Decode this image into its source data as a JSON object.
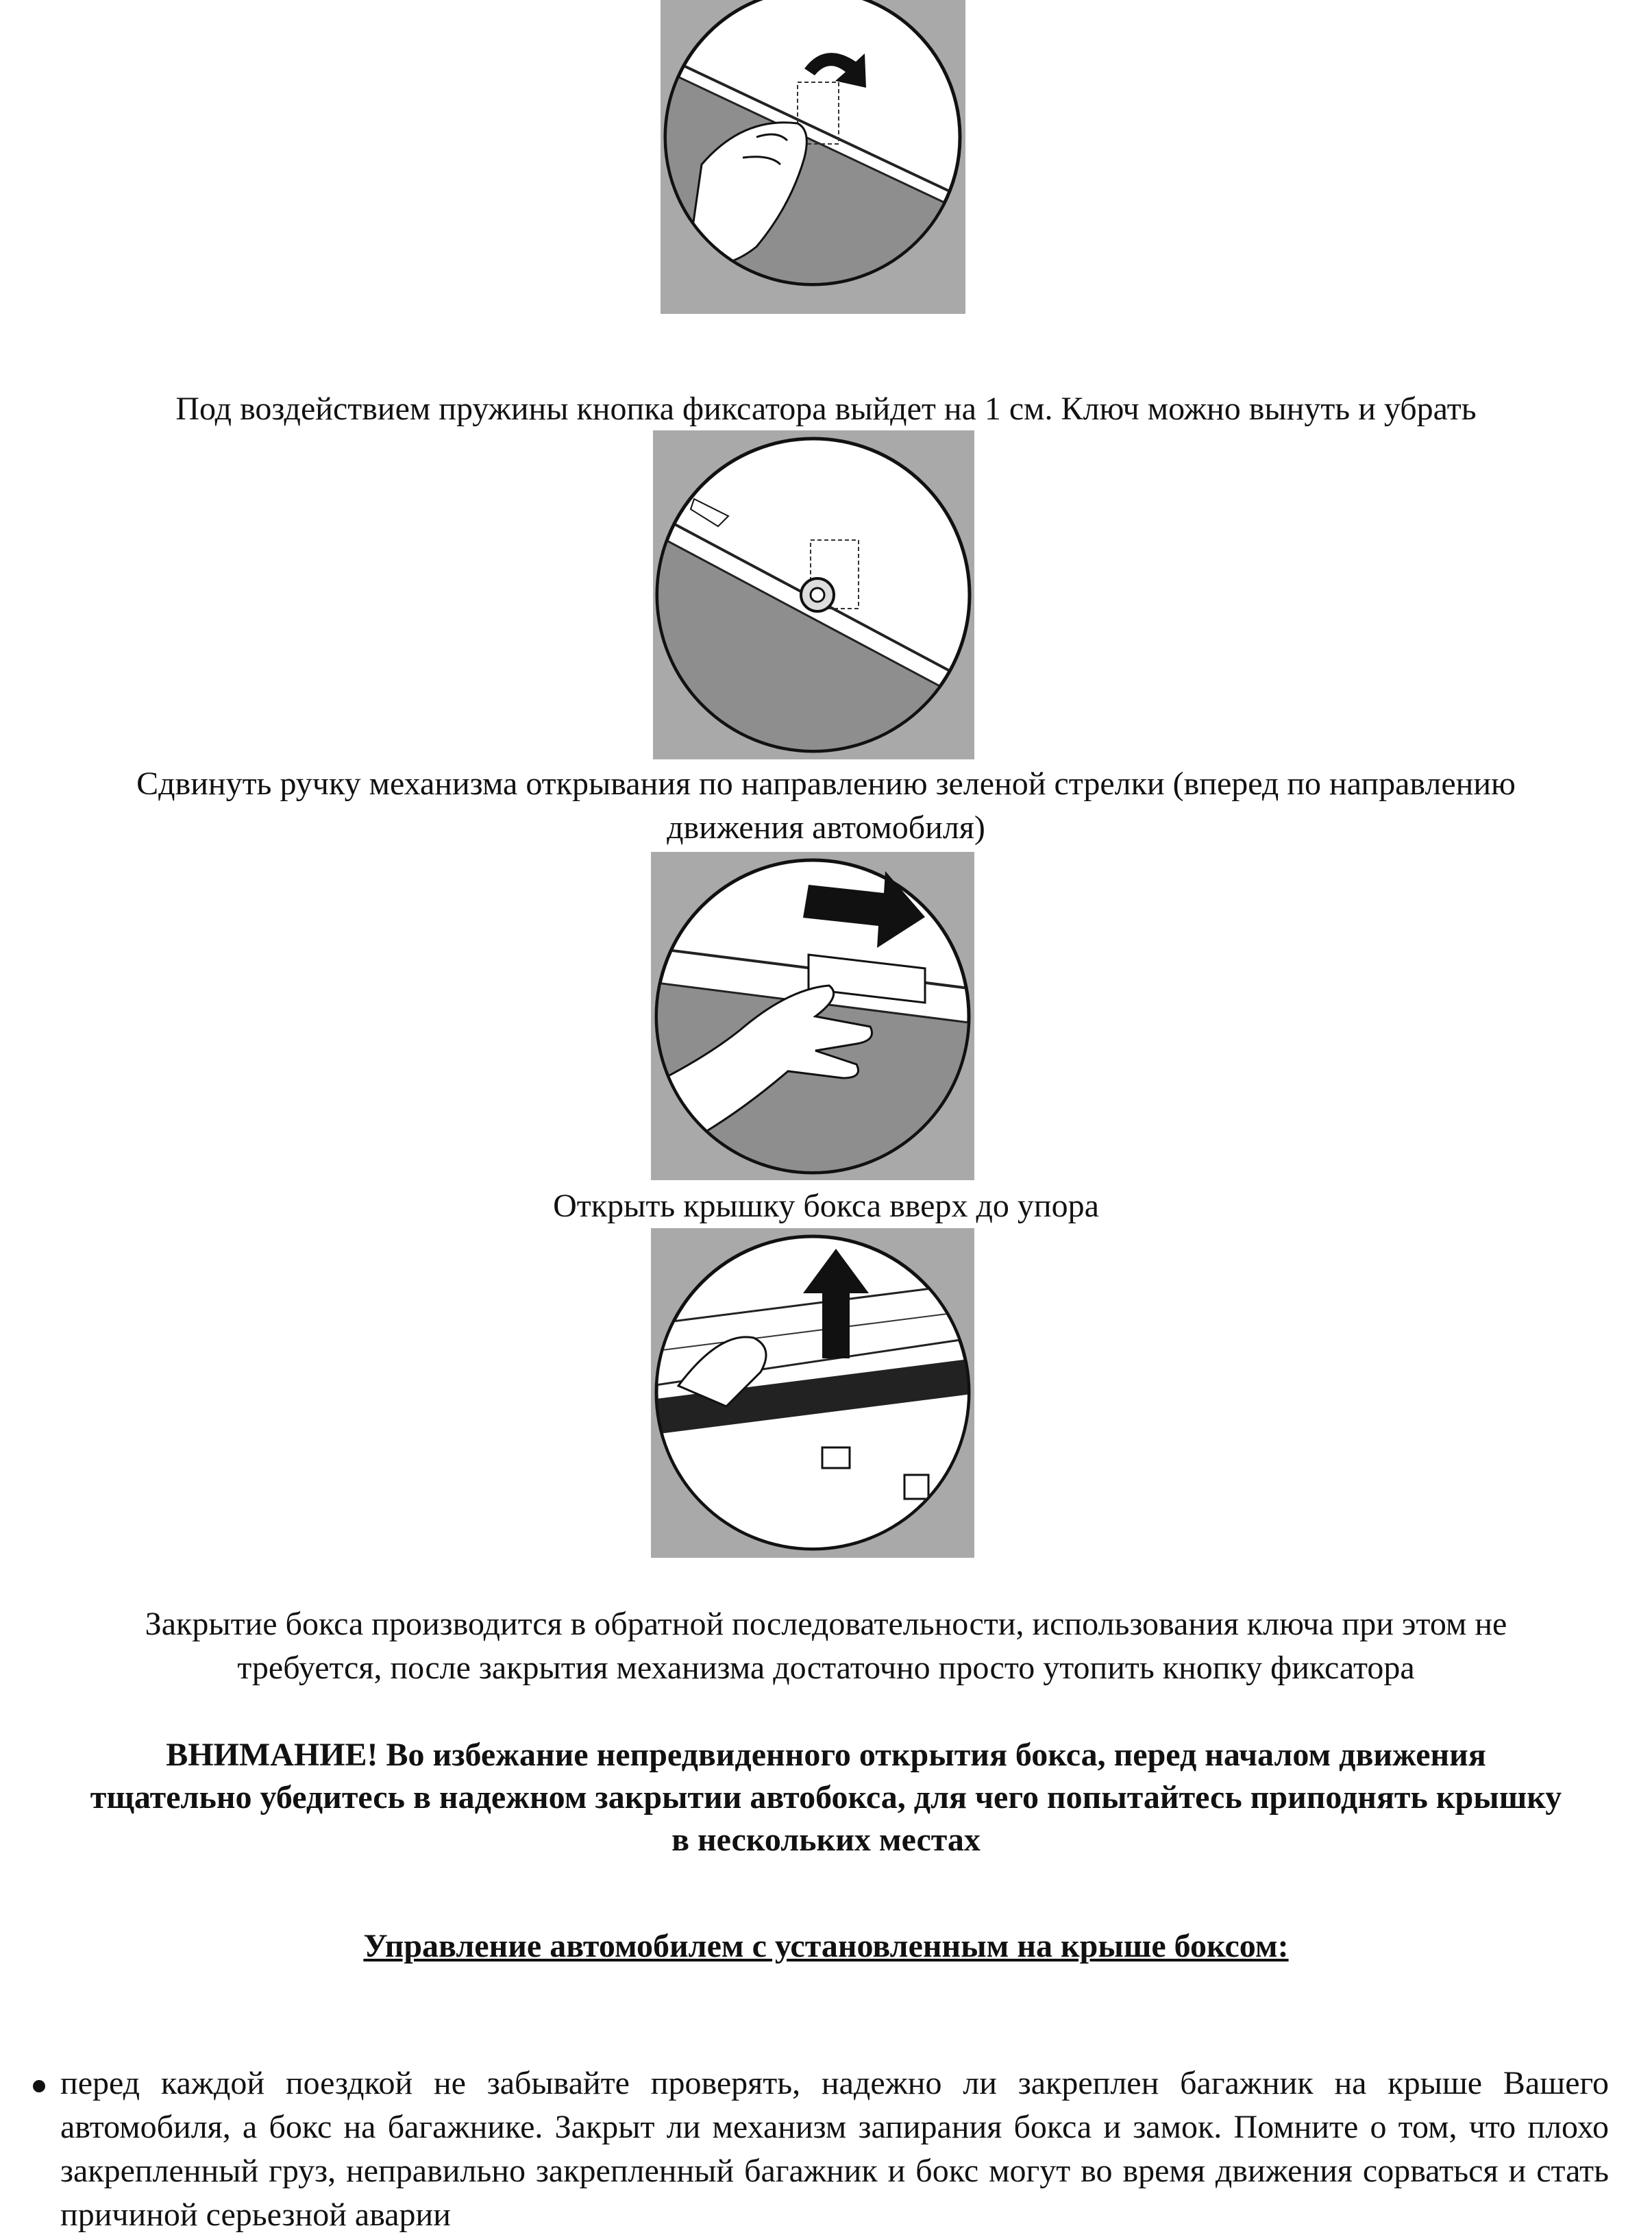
{
  "captions": {
    "caption1": "Под воздействием пружины кнопка фиксатора выйдет на 1 см. Ключ можно вынуть и убрать",
    "caption2": [
      "Сдвинуть ручку механизма открывания по направлению зеленой стрелки (вперед по направлению",
      "движения автомобиля)"
    ],
    "caption3": "Открыть крышку бокса вверх до упора",
    "caption4": [
      "Закрытие бокса производится в обратной последовательности, использования ключа при этом не",
      "требуется, после закрытия механизма достаточно просто утопить кнопку фиксатора"
    ]
  },
  "warning": [
    "ВНИМАНИЕ! Во избежание непредвиденного открытия бокса, перед началом движения",
    "тщательно убедитесь в надежном закрытии автобокса, для чего попытайтесь приподнять крышку",
    "в нескольких местах"
  ],
  "section_heading": "Управление автомобилем с установленным на крыше боксом:",
  "bullets": [
    "перед каждой поездкой не забывайте проверять, надежно ли закреплен багажник на крыше Вашего автомобиля, а бокс на багажнике. Закрыт ли механизм запирания бокса и замок. Помните о том, что плохо закрепленный груз, неправильно закрепленный багажник и бокс могут во время движения сорваться и стать причиной серьезной аварии"
  ],
  "figure_icons": [
    "key-turn-illustration",
    "lock-button-illustration",
    "handle-slide-illustration",
    "lid-open-illustration"
  ]
}
